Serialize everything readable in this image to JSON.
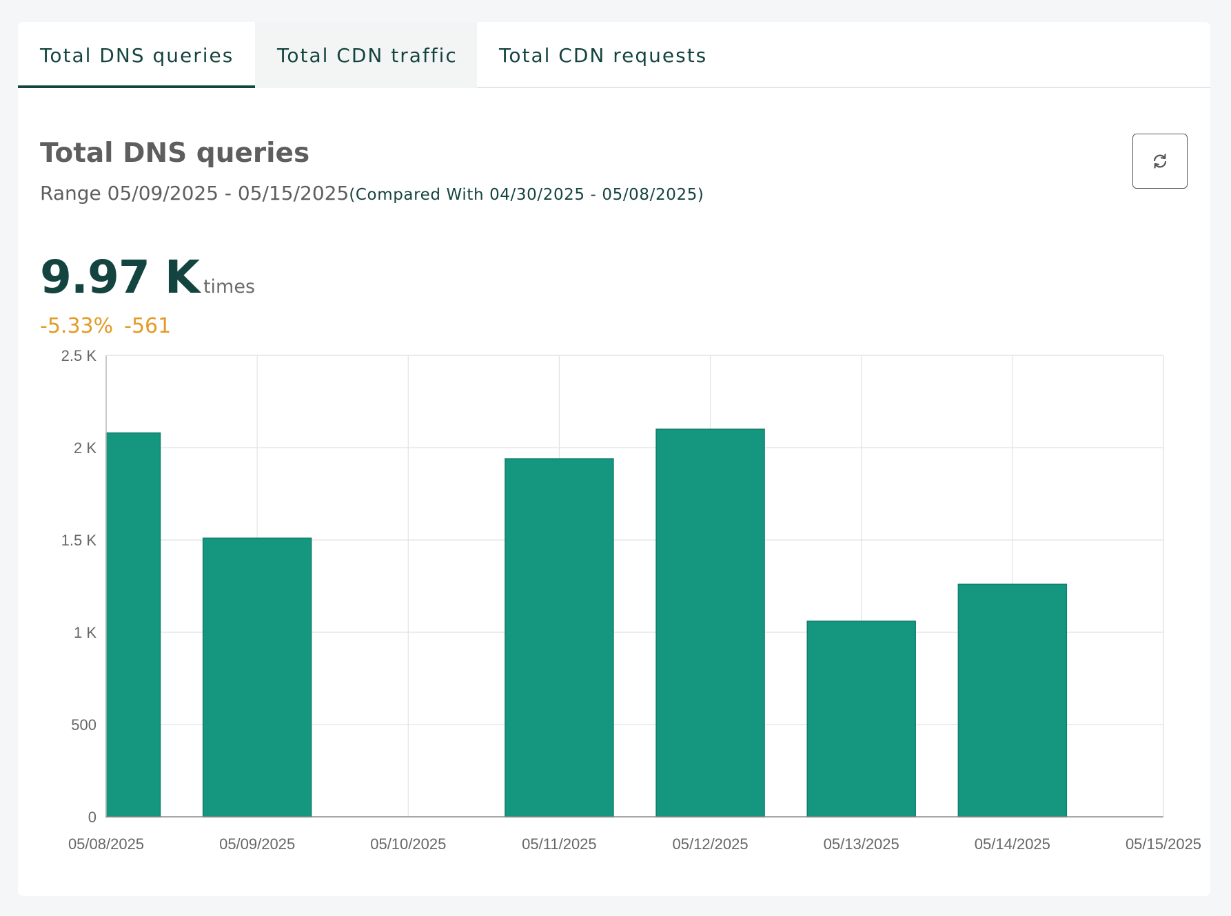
{
  "tabs": [
    {
      "label": "Total DNS queries",
      "active": true
    },
    {
      "label": "Total CDN traffic",
      "active": false
    },
    {
      "label": "Total CDN requests",
      "active": false
    }
  ],
  "panel": {
    "title": "Total DNS queries",
    "range": "Range 05/09/2025 - 05/15/2025",
    "compared": "(Compared With 04/30/2025 - 05/08/2025)",
    "total_value": "9.97 K",
    "total_unit": "times",
    "delta_percent": "-5.33%",
    "delta_abs": "-561",
    "refresh_icon": "refresh-icon"
  },
  "colors": {
    "bar": "#15967f",
    "accent_text": "#14443f",
    "delta": "#e49a24"
  },
  "chart_data": {
    "type": "bar",
    "x": [
      "05/08/2025",
      "05/09/2025",
      "05/10/2025",
      "05/11/2025",
      "05/12/2025",
      "05/13/2025",
      "05/14/2025",
      "05/15/2025"
    ],
    "series": [
      {
        "values": [
          2080,
          1510,
          0,
          1940,
          2100,
          1060,
          1260,
          0
        ]
      }
    ],
    "yticks": [
      {
        "value": 0,
        "label": "0"
      },
      {
        "value": 500,
        "label": "500"
      },
      {
        "value": 1000,
        "label": "1 K"
      },
      {
        "value": 1500,
        "label": "1.5 K"
      },
      {
        "value": 2000,
        "label": "2 K"
      },
      {
        "value": 2500,
        "label": "2.5 K"
      }
    ],
    "ylim": [
      0,
      2500
    ],
    "grid": true,
    "legend": "none"
  }
}
